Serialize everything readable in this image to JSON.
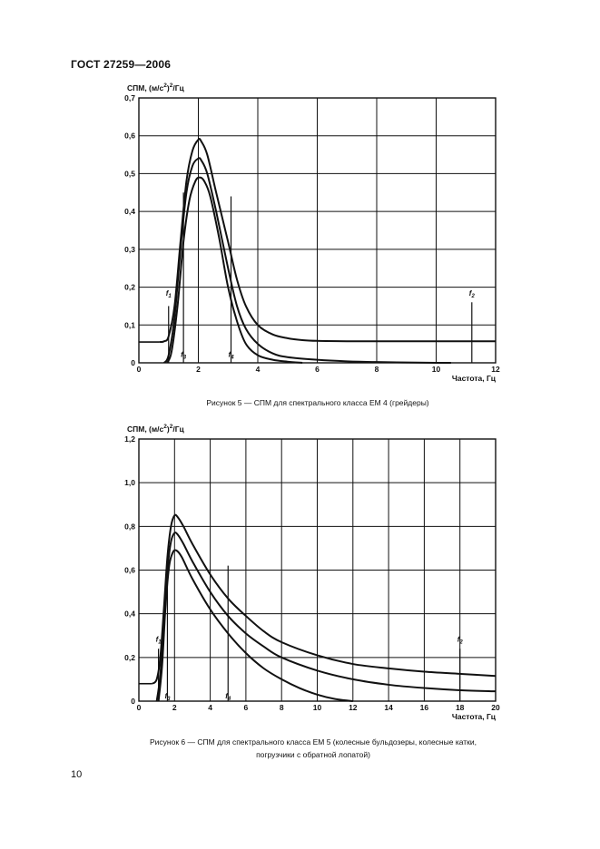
{
  "header": {
    "title": "ГОСТ 27259—2006"
  },
  "page_number": "10",
  "chart_data": [
    {
      "type": "line",
      "title": "",
      "ylabel_main": "СПМ, (м/с",
      "ylabel_sup": "2",
      "ylabel_tail": ")",
      "ylabel_sup2": "2",
      "ylabel_end": "/Гц",
      "xlabel": "Частота, Гц",
      "caption": "Рисунок 5 — СПМ для спектрального класса ЕМ 4 (грейдеры)",
      "xlim": [
        0,
        12
      ],
      "ylim": [
        0,
        0.7
      ],
      "x_ticks": [
        {
          "v": 0,
          "label": "0"
        },
        {
          "v": 2,
          "label": "2"
        },
        {
          "v": 4,
          "label": "4"
        },
        {
          "v": 6,
          "label": "6"
        },
        {
          "v": 8,
          "label": "8"
        },
        {
          "v": 10,
          "label": "10"
        },
        {
          "v": 12,
          "label": "12"
        }
      ],
      "y_ticks": [
        {
          "v": 0,
          "label": "0"
        },
        {
          "v": 0.1,
          "label": "0,1"
        },
        {
          "v": 0.2,
          "label": "0,2"
        },
        {
          "v": 0.3,
          "label": "0,3"
        },
        {
          "v": 0.4,
          "label": "0,4"
        },
        {
          "v": 0.5,
          "label": "0,5"
        },
        {
          "v": 0.6,
          "label": "0,6"
        },
        {
          "v": 0.7,
          "label": "0,7"
        }
      ],
      "markers": [
        {
          "label": "f",
          "sub": "1",
          "x": 1.0,
          "y0": 0.0,
          "y1": 0.15,
          "label_y": 0.17
        },
        {
          "label": "f",
          "sub": "3",
          "x": 1.5,
          "y0": 0.0,
          "y1": 0.45,
          "label_y": 0.02
        },
        {
          "label": "f",
          "sub": "4",
          "x": 3.1,
          "y0": 0.0,
          "y1": 0.44,
          "label_y": 0.02
        },
        {
          "label": "f",
          "sub": "2",
          "x": 11.2,
          "y0": 0.0,
          "y1": 0.16,
          "label_y": 0.17
        }
      ],
      "series": [
        {
          "name": "upper",
          "x": [
            0.7,
            0.85,
            1.0,
            1.2,
            1.4,
            1.6,
            1.8,
            2.0,
            2.1,
            2.3,
            2.6,
            3.0,
            3.3,
            3.6,
            4.0,
            4.5,
            5.0,
            5.5,
            6.0,
            7.0,
            8.0,
            9.0,
            10.0,
            11.0,
            12.0
          ],
          "y": [
            0.055,
            0.057,
            0.07,
            0.15,
            0.32,
            0.48,
            0.56,
            0.59,
            0.585,
            0.55,
            0.45,
            0.32,
            0.22,
            0.15,
            0.1,
            0.075,
            0.065,
            0.06,
            0.058,
            0.057,
            0.057,
            0.057,
            0.057,
            0.057,
            0.057
          ]
        },
        {
          "name": "middle",
          "x": [
            0.85,
            1.0,
            1.2,
            1.4,
            1.6,
            1.8,
            2.0,
            2.1,
            2.3,
            2.6,
            3.0,
            3.3,
            3.6,
            4.0,
            4.5,
            5.0,
            6.0,
            7.0,
            8.0,
            9.0,
            10.0,
            10.5
          ],
          "y": [
            0.0,
            0.02,
            0.12,
            0.3,
            0.45,
            0.52,
            0.54,
            0.535,
            0.5,
            0.4,
            0.25,
            0.15,
            0.09,
            0.05,
            0.025,
            0.015,
            0.008,
            0.004,
            0.002,
            0.001,
            0.0,
            0.0
          ]
        },
        {
          "name": "lower",
          "x": [
            0.95,
            1.1,
            1.3,
            1.5,
            1.7,
            1.9,
            2.05,
            2.2,
            2.4,
            2.7,
            3.0,
            3.3,
            3.6,
            4.0,
            4.5,
            5.0,
            5.5
          ],
          "y": [
            0.0,
            0.03,
            0.15,
            0.32,
            0.43,
            0.48,
            0.49,
            0.48,
            0.44,
            0.33,
            0.2,
            0.11,
            0.05,
            0.02,
            0.008,
            0.003,
            0.0
          ]
        }
      ],
      "flat_line": {
        "x0": 0,
        "x1": 0.7,
        "y": 0.055
      }
    },
    {
      "type": "line",
      "title": "",
      "ylabel_main": "СПМ, (м/с",
      "ylabel_sup": "2",
      "ylabel_tail": ")",
      "ylabel_sup2": "2",
      "ylabel_end": "/Гц",
      "xlabel": "Частота, Гц",
      "caption_line1": "Рисунок 6 — СПМ для спектрального класса ЕМ 5 (колесные бульдозеры, колесные катки,",
      "caption_line2": "погрузчики с обратной лопатой)",
      "xlim": [
        0,
        20
      ],
      "ylim": [
        0,
        1.2
      ],
      "x_ticks": [
        {
          "v": 0,
          "label": "0"
        },
        {
          "v": 2,
          "label": "2"
        },
        {
          "v": 4,
          "label": "4"
        },
        {
          "v": 6,
          "label": "6"
        },
        {
          "v": 8,
          "label": "8"
        },
        {
          "v": 10,
          "label": "10"
        },
        {
          "v": 12,
          "label": "12"
        },
        {
          "v": 14,
          "label": "14"
        },
        {
          "v": 16,
          "label": "16"
        },
        {
          "v": 18,
          "label": "18"
        },
        {
          "v": 20,
          "label": "20"
        }
      ],
      "y_ticks": [
        {
          "v": 0,
          "label": "0"
        },
        {
          "v": 0.2,
          "label": "0,2"
        },
        {
          "v": 0.4,
          "label": "0,4"
        },
        {
          "v": 0.6,
          "label": "0,6"
        },
        {
          "v": 0.8,
          "label": "0,8"
        },
        {
          "v": 1.0,
          "label": "1,0"
        },
        {
          "v": 1.2,
          "label": "1,2"
        }
      ],
      "markers": [
        {
          "label": "f",
          "sub": "1",
          "x": 1.1,
          "y0": 0.0,
          "y1": 0.24,
          "label_y": 0.26
        },
        {
          "label": "f",
          "sub": "3",
          "x": 1.6,
          "y0": 0.0,
          "y1": 0.6,
          "label_y": 0.02
        },
        {
          "label": "f",
          "sub": "4",
          "x": 5.0,
          "y0": 0.0,
          "y1": 0.62,
          "label_y": 0.02
        },
        {
          "label": "f",
          "sub": "2",
          "x": 18.0,
          "y0": 0.0,
          "y1": 0.24,
          "label_y": 0.26
        }
      ],
      "series": [
        {
          "name": "upper",
          "x": [
            0.75,
            1.0,
            1.2,
            1.4,
            1.6,
            1.8,
            2.0,
            2.2,
            2.5,
            3.0,
            4.0,
            5.0,
            6.0,
            7.0,
            8.0,
            10.0,
            12.0,
            14.0,
            16.0,
            18.0,
            20.0
          ],
          "y": [
            0.08,
            0.1,
            0.2,
            0.42,
            0.66,
            0.8,
            0.85,
            0.84,
            0.8,
            0.72,
            0.58,
            0.47,
            0.39,
            0.32,
            0.27,
            0.21,
            0.17,
            0.15,
            0.135,
            0.125,
            0.115
          ]
        },
        {
          "name": "middle",
          "x": [
            1.0,
            1.2,
            1.4,
            1.6,
            1.8,
            2.0,
            2.2,
            2.5,
            3.0,
            4.0,
            5.0,
            6.0,
            7.0,
            8.0,
            10.0,
            12.0,
            14.0,
            16.0,
            18.0,
            20.0
          ],
          "y": [
            0.0,
            0.12,
            0.36,
            0.6,
            0.73,
            0.77,
            0.76,
            0.72,
            0.64,
            0.5,
            0.39,
            0.31,
            0.25,
            0.2,
            0.14,
            0.1,
            0.075,
            0.06,
            0.05,
            0.045
          ]
        },
        {
          "name": "lower",
          "x": [
            1.1,
            1.3,
            1.5,
            1.7,
            1.9,
            2.1,
            2.4,
            3.0,
            4.0,
            5.0,
            6.0,
            7.0,
            8.0,
            9.0,
            10.0,
            11.0,
            12.0
          ],
          "y": [
            0.0,
            0.16,
            0.44,
            0.62,
            0.68,
            0.69,
            0.66,
            0.56,
            0.42,
            0.31,
            0.22,
            0.15,
            0.1,
            0.06,
            0.03,
            0.01,
            0.0
          ]
        }
      ],
      "flat_line": {
        "x0": 0,
        "x1": 0.75,
        "y": 0.08
      }
    }
  ]
}
